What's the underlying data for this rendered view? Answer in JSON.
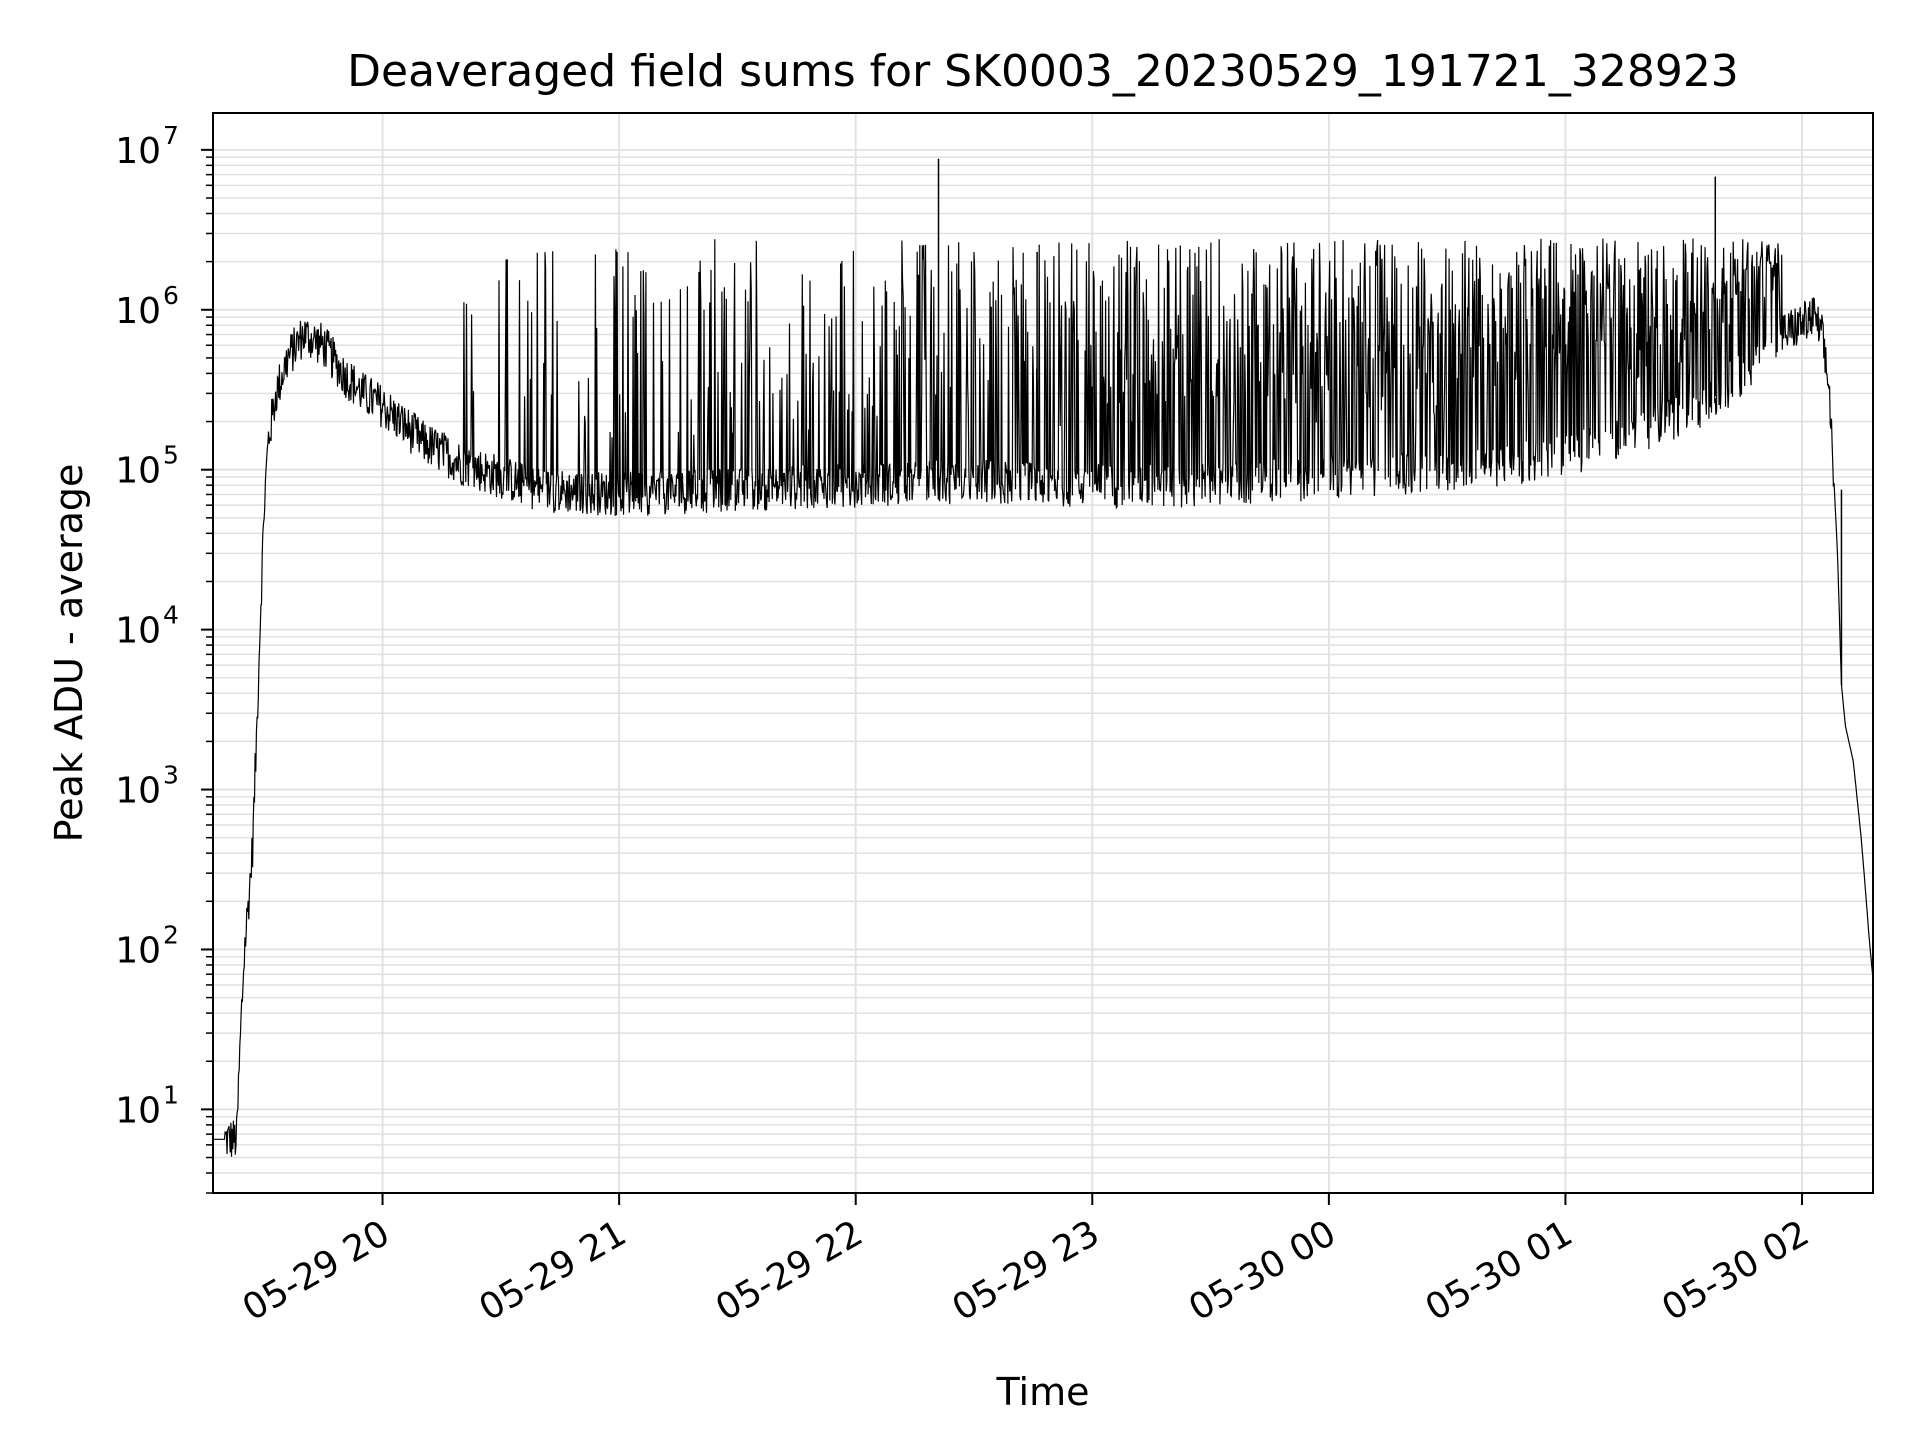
{
  "chart_data": {
    "type": "line",
    "title": "Deaveraged field sums for SK0003_20230529_191721_328923",
    "xlabel": "Time",
    "ylabel": "Peak ADU - average",
    "yscale": "log",
    "ylim": [
      3,
      17000000
    ],
    "xlim": [
      "2023-05-29 19:17",
      "2023-05-30 02:18"
    ],
    "grid": true,
    "line_color": "#000000",
    "grid_color": "#e0e0e0",
    "x_ticks": [
      {
        "label": "05-29 20",
        "value": "2023-05-29 20:00"
      },
      {
        "label": "05-29 21",
        "value": "2023-05-29 21:00"
      },
      {
        "label": "05-29 22",
        "value": "2023-05-29 22:00"
      },
      {
        "label": "05-29 23",
        "value": "2023-05-29 23:00"
      },
      {
        "label": "05-30 00",
        "value": "2023-05-30 00:00"
      },
      {
        "label": "05-30 01",
        "value": "2023-05-30 01:00"
      },
      {
        "label": "05-30 02",
        "value": "2023-05-30 02:00"
      }
    ],
    "y_ticks": [
      {
        "base": "10",
        "exp": "1",
        "value": 10
      },
      {
        "base": "10",
        "exp": "2",
        "value": 100
      },
      {
        "base": "10",
        "exp": "3",
        "value": 1000
      },
      {
        "base": "10",
        "exp": "4",
        "value": 10000
      },
      {
        "base": "10",
        "exp": "5",
        "value": 100000
      },
      {
        "base": "10",
        "exp": "6",
        "value": 1000000
      },
      {
        "base": "10",
        "exp": "7",
        "value": 10000000
      }
    ],
    "series_x": [
      "2023-05-29 19:17",
      "2023-05-29 19:23",
      "2023-05-29 19:24",
      "2023-05-29 19:25",
      "2023-05-29 19:26",
      "2023-05-29 19:27",
      "2023-05-29 19:28",
      "2023-05-29 19:29",
      "2023-05-29 19:30",
      "2023-05-29 19:31",
      "2023-05-29 19:33",
      "2023-05-29 19:36",
      "2023-05-29 19:40",
      "2023-05-29 19:45",
      "2023-05-29 19:50",
      "2023-05-29 19:55",
      "2023-05-29 20:00",
      "2023-05-29 20:10",
      "2023-05-29 20:20",
      "2023-05-29 20:30",
      "2023-05-29 20:40",
      "2023-05-29 21:00",
      "2023-05-29 21:30",
      "2023-05-29 22:00",
      "2023-05-29 22:30",
      "2023-05-29 23:00",
      "2023-05-29 23:30",
      "2023-05-30 00:00",
      "2023-05-30 00:30",
      "2023-05-30 01:00",
      "2023-05-30 01:20",
      "2023-05-30 01:35",
      "2023-05-30 01:45",
      "2023-05-30 01:55",
      "2023-05-30 02:03",
      "2023-05-30 02:05",
      "2023-05-30 02:07",
      "2023-05-30 02:09",
      "2023-05-30 02:10",
      "2023-05-30 02:11",
      "2023-05-30 02:13",
      "2023-05-30 02:15",
      "2023-05-30 02:16",
      "2023-05-30 02:17",
      "2023-05-30 02:18"
    ],
    "series_y": [
      6.5,
      6.5,
      30,
      100,
      200,
      420,
      2000,
      12000,
      60000,
      150000,
      300000,
      500000,
      700000,
      600000,
      400000,
      300000,
      250000,
      150000,
      110000,
      90000,
      75000,
      70000,
      75000,
      80000,
      85000,
      80000,
      80000,
      90000,
      100000,
      120000,
      180000,
      250000,
      400000,
      700000,
      900000,
      700000,
      300000,
      30000,
      4500,
      2500,
      1500,
      500,
      250,
      120,
      65
    ],
    "spikes": [
      {
        "x": "2023-05-29 22:21",
        "y": 8800000
      },
      {
        "x": "2023-05-29 22:46",
        "y": 2300000
      },
      {
        "x": "2023-05-30 01:38",
        "y": 6800000
      },
      {
        "x": "2023-05-30 02:10",
        "y": 75000
      }
    ],
    "envelope_note_free": true
  }
}
